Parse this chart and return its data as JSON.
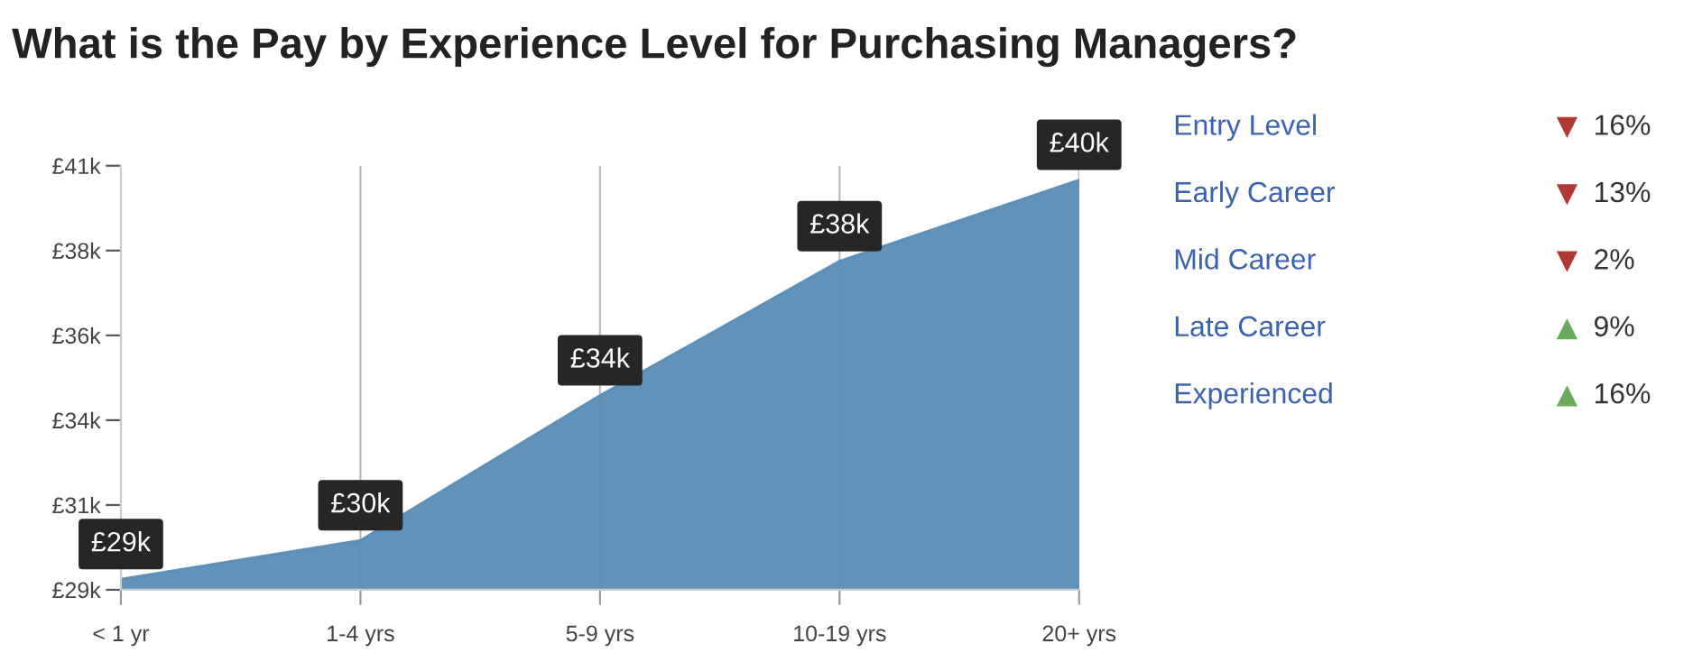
{
  "chart_data": [
    {
      "type": "area",
      "title": "What is the Pay by Experience Level for Purchasing Managers?",
      "categories": [
        "< 1 yr",
        "1-4 yrs",
        "5-9 yrs",
        "10-19 yrs",
        "20+ yrs"
      ],
      "series": [
        {
          "color": "#5a8db6",
          "values": [
            29100,
            30200,
            34300,
            38100,
            40400
          ],
          "value_labels": [
            "£29k",
            "£30k",
            "£34k",
            "£38k",
            "£40k"
          ]
        }
      ],
      "ylim": [
        28800,
        40800
      ],
      "yticks": [
        {
          "value": 28800,
          "label": "£29k"
        },
        {
          "value": 31200,
          "label": "£31k"
        },
        {
          "value": 33600,
          "label": "£34k"
        },
        {
          "value": 36000,
          "label": "£36k"
        },
        {
          "value": 38400,
          "label": "£38k"
        },
        {
          "value": 40800,
          "label": "£41k"
        }
      ],
      "grid": "x",
      "legend": false
    },
    {
      "type": "other",
      "categories": [
        "Entry Level",
        "Early Career",
        "Mid Career",
        "Late Career",
        "Experienced"
      ],
      "series": [
        {
          "color": "#b03a33",
          "marker": "triangle_down",
          "values": [
            16,
            13,
            2,
            null,
            null
          ],
          "value_labels": [
            "16%",
            "13%",
            "2%",
            null,
            null
          ]
        },
        {
          "color": "#6aaa5c",
          "marker": "triangle",
          "values": [
            null,
            null,
            null,
            9,
            16
          ],
          "value_labels": [
            null,
            null,
            null,
            "9%",
            "16%"
          ]
        }
      ]
    }
  ]
}
